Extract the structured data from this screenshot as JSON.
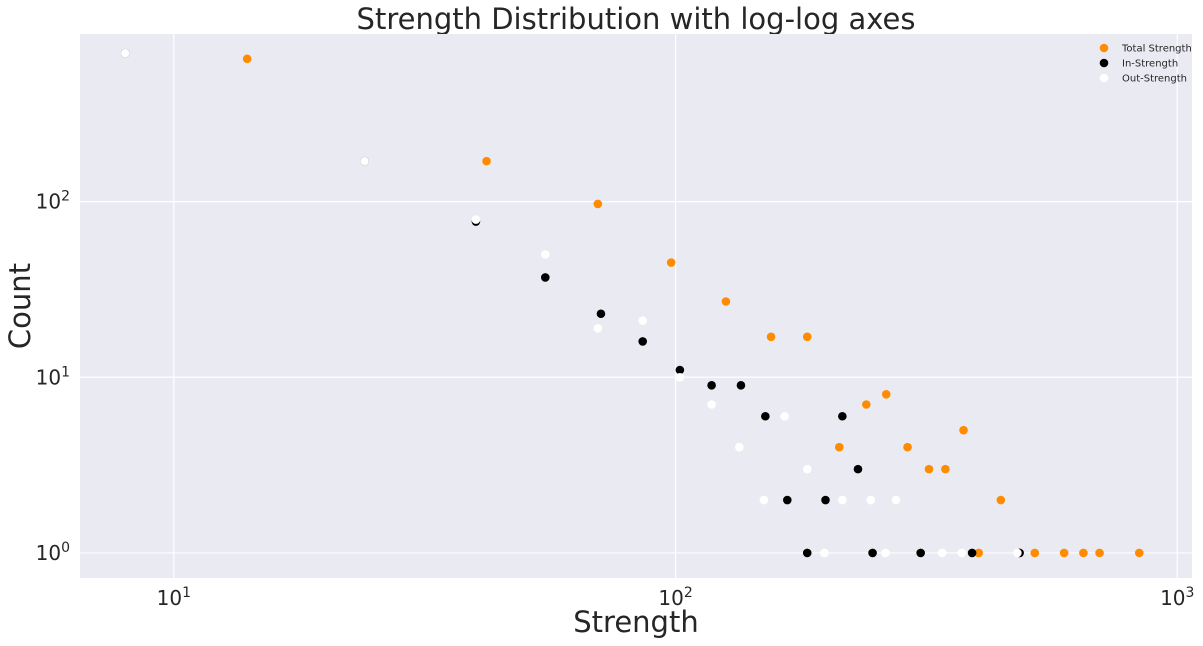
{
  "chart_data": {
    "type": "scatter",
    "title": "Strength Distribution with log-log axes",
    "xlabel": "Strength",
    "ylabel": "Count",
    "xscale": "log",
    "yscale": "log",
    "xlim": [
      6.5,
      1070
    ],
    "ylim": [
      0.72,
      900
    ],
    "xticks": [
      {
        "value": 10,
        "base": "10",
        "exp": "1"
      },
      {
        "value": 100,
        "base": "10",
        "exp": "2"
      },
      {
        "value": 1000,
        "base": "10",
        "exp": "3"
      }
    ],
    "yticks": [
      {
        "value": 1,
        "base": "10",
        "exp": "0"
      },
      {
        "value": 10,
        "base": "10",
        "exp": "1"
      },
      {
        "value": 100,
        "base": "10",
        "exp": "2"
      }
    ],
    "grid": true,
    "legend_position": "top-right",
    "series": [
      {
        "name": "Total Strength",
        "color": "#ff8c00",
        "points": [
          [
            14,
            650
          ],
          [
            42,
            170
          ],
          [
            70,
            97
          ],
          [
            98,
            45
          ],
          [
            126,
            27
          ],
          [
            155,
            17
          ],
          [
            183,
            17
          ],
          [
            212,
            4
          ],
          [
            240,
            7
          ],
          [
            263,
            8
          ],
          [
            290,
            4
          ],
          [
            320,
            3
          ],
          [
            345,
            3
          ],
          [
            375,
            5
          ],
          [
            402,
            1
          ],
          [
            445,
            2
          ],
          [
            485,
            1
          ],
          [
            520,
            1
          ],
          [
            595,
            1
          ],
          [
            650,
            1
          ],
          [
            700,
            1
          ],
          [
            840,
            1
          ]
        ]
      },
      {
        "name": "In-Strength",
        "color": "#000000",
        "points": [
          [
            8,
            700
          ],
          [
            24,
            170
          ],
          [
            40,
            77
          ],
          [
            55,
            37
          ],
          [
            71,
            23
          ],
          [
            86,
            16
          ],
          [
            102,
            11
          ],
          [
            118,
            9
          ],
          [
            135,
            9
          ],
          [
            151,
            6
          ],
          [
            167,
            2
          ],
          [
            183,
            1
          ],
          [
            199,
            2
          ],
          [
            215,
            6
          ],
          [
            231,
            3
          ],
          [
            247,
            1
          ],
          [
            308,
            1
          ],
          [
            390,
            1
          ],
          [
            485,
            1
          ]
        ]
      },
      {
        "name": "Out-Strength",
        "color": "#ffffff",
        "points": [
          [
            8,
            700
          ],
          [
            24,
            170
          ],
          [
            40,
            79
          ],
          [
            55,
            50
          ],
          [
            70,
            19
          ],
          [
            86,
            21
          ],
          [
            102,
            10
          ],
          [
            118,
            7
          ],
          [
            134,
            4
          ],
          [
            150,
            2
          ],
          [
            165,
            6
          ],
          [
            183,
            3
          ],
          [
            198,
            1
          ],
          [
            215,
            2
          ],
          [
            245,
            2
          ],
          [
            262,
            1
          ],
          [
            275,
            2
          ],
          [
            340,
            1
          ],
          [
            372,
            1
          ],
          [
            480,
            1
          ]
        ]
      }
    ]
  }
}
